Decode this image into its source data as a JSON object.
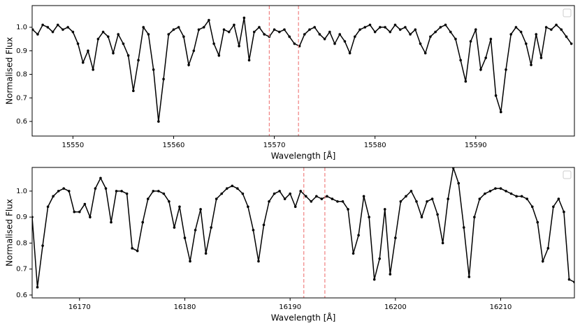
{
  "chart_data": [
    {
      "type": "line",
      "x_label": "Wavelength [Å]",
      "y_label": "Normalised Flux",
      "xlim": [
        15545.95,
        15599.8
      ],
      "ylim": [
        0.538,
        1.092
      ],
      "xticks": [
        15550,
        15560,
        15570,
        15580,
        15590
      ],
      "yticks": [
        0.6,
        0.7,
        0.8,
        0.9,
        {
          "value": 1,
          "label": "1.0"
        }
      ],
      "vlines": [
        15569.5,
        15572.4
      ],
      "vline_color": "#f08080",
      "legend": "upper right",
      "x": [
        15546.0,
        15546.5,
        15547.0,
        15547.5,
        15548.0,
        15548.5,
        15549.0,
        15549.5,
        15550.0,
        15550.5,
        15551.0,
        15551.5,
        15552.0,
        15552.5,
        15553.0,
        15553.5,
        15554.0,
        15554.5,
        15555.0,
        15555.5,
        15556.0,
        15556.5,
        15557.0,
        15557.5,
        15558.0,
        15558.5,
        15559.0,
        15559.5,
        15560.0,
        15560.5,
        15561.0,
        15561.5,
        15562.0,
        15562.5,
        15563.0,
        15563.5,
        15564.0,
        15564.5,
        15565.0,
        15565.5,
        15566.0,
        15566.5,
        15567.0,
        15567.5,
        15568.0,
        15568.5,
        15569.0,
        15569.5,
        15570.0,
        15570.5,
        15571.0,
        15571.5,
        15572.0,
        15572.5,
        15573.0,
        15573.5,
        15574.0,
        15574.5,
        15575.0,
        15575.5,
        15576.0,
        15576.5,
        15577.0,
        15577.5,
        15578.0,
        15578.5,
        15579.0,
        15579.5,
        15580.0,
        15580.5,
        15581.0,
        15581.5,
        15582.0,
        15582.5,
        15583.0,
        15583.5,
        15584.0,
        15584.5,
        15585.0,
        15585.5,
        15586.0,
        15586.5,
        15587.0,
        15587.5,
        15588.0,
        15588.5,
        15589.0,
        15589.5,
        15590.0,
        15590.5,
        15591.0,
        15591.5,
        15592.0,
        15592.5,
        15593.0,
        15593.5,
        15594.0,
        15594.5,
        15595.0,
        15595.5,
        15596.0,
        15596.5,
        15597.0,
        15597.5,
        15598.0,
        15598.5,
        15599.0,
        15599.5
      ],
      "series": [
        {
          "color": "#000000",
          "values": [
            0.99,
            0.97,
            1.01,
            1.0,
            0.98,
            1.01,
            0.99,
            1.0,
            0.98,
            0.93,
            0.85,
            0.9,
            0.82,
            0.95,
            0.98,
            0.96,
            0.89,
            0.97,
            0.93,
            0.88,
            0.73,
            0.86,
            1.0,
            0.97,
            0.82,
            0.6,
            0.78,
            0.97,
            0.99,
            1.0,
            0.96,
            0.84,
            0.9,
            0.99,
            1.0,
            1.03,
            0.93,
            0.88,
            0.99,
            0.98,
            1.01,
            0.92,
            1.04,
            0.86,
            0.98,
            1.0,
            0.97,
            0.96,
            0.99,
            0.98,
            0.99,
            0.96,
            0.93,
            0.92,
            0.97,
            0.99,
            1.0,
            0.97,
            0.95,
            0.98,
            0.93,
            0.97,
            0.94,
            0.89,
            0.96,
            0.99,
            1.0,
            1.01,
            0.98,
            1.0,
            1.0,
            0.98,
            1.01,
            0.99,
            1.0,
            0.97,
            0.99,
            0.93,
            0.89,
            0.96,
            0.98,
            1.0,
            1.01,
            0.98,
            0.95,
            0.86,
            0.77,
            0.94,
            0.99,
            0.82,
            0.87,
            0.95,
            0.71,
            0.64,
            0.82,
            0.97,
            1.0,
            0.98,
            0.93,
            0.84,
            0.97,
            0.87,
            1.0,
            0.99,
            1.01,
            0.99,
            0.96,
            0.93
          ]
        }
      ]
    },
    {
      "type": "line",
      "x_label": "Wavelength [Å]",
      "y_label": "Normalised Flux",
      "xlim": [
        16165.5,
        16217.0
      ],
      "ylim": [
        0.589,
        1.091
      ],
      "xticks": [
        16170,
        16180,
        16190,
        16200,
        16210
      ],
      "yticks": [
        0.6,
        0.7,
        0.8,
        0.9,
        {
          "value": 1,
          "label": "1.0"
        }
      ],
      "vlines": [
        16191.3,
        16193.3
      ],
      "vline_color": "#f08080",
      "legend": "upper right",
      "x": [
        16165.5,
        16166.0,
        16166.5,
        16167.0,
        16167.5,
        16168.0,
        16168.5,
        16169.0,
        16169.5,
        16170.0,
        16170.5,
        16171.0,
        16171.5,
        16172.0,
        16172.5,
        16173.0,
        16173.5,
        16174.0,
        16174.5,
        16175.0,
        16175.5,
        16176.0,
        16176.5,
        16177.0,
        16177.5,
        16178.0,
        16178.5,
        16179.0,
        16179.5,
        16180.0,
        16180.5,
        16181.0,
        16181.5,
        16182.0,
        16182.5,
        16183.0,
        16183.5,
        16184.0,
        16184.5,
        16185.0,
        16185.5,
        16186.0,
        16186.5,
        16187.0,
        16187.5,
        16188.0,
        16188.5,
        16189.0,
        16189.5,
        16190.0,
        16190.5,
        16191.0,
        16191.5,
        16192.0,
        16192.5,
        16193.0,
        16193.5,
        16194.0,
        16194.5,
        16195.0,
        16195.5,
        16196.0,
        16196.5,
        16197.0,
        16197.5,
        16198.0,
        16198.5,
        16199.0,
        16199.5,
        16200.0,
        16200.5,
        16201.0,
        16201.5,
        16202.0,
        16202.5,
        16203.0,
        16203.5,
        16204.0,
        16204.5,
        16205.0,
        16205.5,
        16206.0,
        16206.5,
        16207.0,
        16207.5,
        16208.0,
        16208.5,
        16209.0,
        16209.5,
        16210.0,
        16210.5,
        16211.0,
        16211.5,
        16212.0,
        16212.5,
        16213.0,
        16213.5,
        16214.0,
        16214.5,
        16215.0,
        16215.5,
        16216.0,
        16216.5,
        16217.0
      ],
      "series": [
        {
          "color": "#000000",
          "values": [
            0.9,
            0.63,
            0.79,
            0.94,
            0.98,
            1.0,
            1.01,
            1.0,
            0.92,
            0.92,
            0.95,
            0.9,
            1.01,
            1.05,
            1.01,
            0.88,
            1.0,
            1.0,
            0.99,
            0.78,
            0.77,
            0.88,
            0.97,
            1.0,
            1.0,
            0.99,
            0.96,
            0.86,
            0.94,
            0.82,
            0.73,
            0.85,
            0.93,
            0.76,
            0.86,
            0.97,
            0.99,
            1.01,
            1.02,
            1.01,
            0.99,
            0.94,
            0.85,
            0.73,
            0.87,
            0.96,
            0.99,
            1.0,
            0.97,
            0.99,
            0.94,
            1.0,
            0.98,
            0.96,
            0.98,
            0.97,
            0.98,
            0.97,
            0.96,
            0.96,
            0.93,
            0.76,
            0.83,
            0.98,
            0.9,
            0.66,
            0.74,
            0.93,
            0.68,
            0.82,
            0.96,
            0.98,
            1.0,
            0.96,
            0.9,
            0.96,
            0.97,
            0.91,
            0.8,
            0.97,
            1.09,
            1.03,
            0.86,
            0.67,
            0.9,
            0.97,
            0.99,
            1.0,
            1.01,
            1.01,
            1.0,
            0.99,
            0.98,
            0.98,
            0.97,
            0.94,
            0.88,
            0.73,
            0.78,
            0.94,
            0.97,
            0.92,
            0.66,
            0.65
          ]
        }
      ]
    }
  ]
}
